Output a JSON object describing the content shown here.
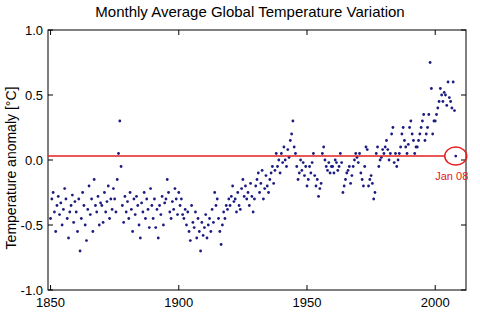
{
  "chart_data": {
    "type": "scatter",
    "title": "Monthly Average Global Temperature Variation",
    "y_label": "Temperature anomaly [°C]",
    "color": "#1c1c80",
    "marker": "dot",
    "xlim": [
      1849,
      2012
    ],
    "ylim": [
      -1,
      1
    ],
    "xticks": [
      1850,
      1900,
      1950,
      2000
    ],
    "yticks": [
      {
        "value": 1,
        "label": "1.0"
      },
      0.5,
      {
        "value": 0,
        "label": "0.0"
      },
      -0.5,
      {
        "value": -1,
        "label": "-1.0"
      }
    ],
    "grid": false,
    "annotations": [
      {
        "text": "Jan 08",
        "x": 2008,
        "y": 0.03,
        "color": "#e02020"
      }
    ],
    "x": [
      1850,
      1850.5,
      1851,
      1851.5,
      1852,
      1852.5,
      1853,
      1853.5,
      1854,
      1854.5,
      1855,
      1855.5,
      1856,
      1856.5,
      1857,
      1857.5,
      1858,
      1858.5,
      1859,
      1859.5,
      1860,
      1860.5,
      1861,
      1861.5,
      1862,
      1862.5,
      1863,
      1863.5,
      1864,
      1864.5,
      1865,
      1865.5,
      1866,
      1866.5,
      1867,
      1867.5,
      1868,
      1868.5,
      1869,
      1869.5,
      1870,
      1870.5,
      1871,
      1871.5,
      1872,
      1872.5,
      1873,
      1873.5,
      1874,
      1874.5,
      1875,
      1875.5,
      1876,
      1876.5,
      1877,
      1877.5,
      1878,
      1878.5,
      1879,
      1879.5,
      1880,
      1880.5,
      1881,
      1881.5,
      1882,
      1882.5,
      1883,
      1883.5,
      1884,
      1884.5,
      1885,
      1885.5,
      1886,
      1886.5,
      1887,
      1887.5,
      1888,
      1888.5,
      1889,
      1889.5,
      1890,
      1890.5,
      1891,
      1891.5,
      1892,
      1892.5,
      1893,
      1893.5,
      1894,
      1894.5,
      1895,
      1895.5,
      1896,
      1896.5,
      1897,
      1897.5,
      1898,
      1898.5,
      1899,
      1899.5,
      1900,
      1900.5,
      1901,
      1901.5,
      1902,
      1902.5,
      1903,
      1903.5,
      1904,
      1904.5,
      1905,
      1905.5,
      1906,
      1906.5,
      1907,
      1907.5,
      1908,
      1908.5,
      1909,
      1909.5,
      1910,
      1910.5,
      1911,
      1911.5,
      1912,
      1912.5,
      1913,
      1913.5,
      1914,
      1914.5,
      1915,
      1915.5,
      1916,
      1916.5,
      1917,
      1917.5,
      1918,
      1918.5,
      1919,
      1919.5,
      1920,
      1920.5,
      1921,
      1921.5,
      1922,
      1922.5,
      1923,
      1923.5,
      1924,
      1924.5,
      1925,
      1925.5,
      1926,
      1926.5,
      1927,
      1927.5,
      1928,
      1928.5,
      1929,
      1929.5,
      1930,
      1930.5,
      1931,
      1931.5,
      1932,
      1932.5,
      1933,
      1933.5,
      1934,
      1934.5,
      1935,
      1935.5,
      1936,
      1936.5,
      1937,
      1937.5,
      1938,
      1938.5,
      1939,
      1939.5,
      1940,
      1940.5,
      1941,
      1941.5,
      1942,
      1942.5,
      1943,
      1943.5,
      1944,
      1944.5,
      1945,
      1945.5,
      1946,
      1946.5,
      1947,
      1947.5,
      1948,
      1948.5,
      1949,
      1949.5,
      1950,
      1950.5,
      1951,
      1951.5,
      1952,
      1952.5,
      1953,
      1953.5,
      1954,
      1954.5,
      1955,
      1955.5,
      1956,
      1956.5,
      1957,
      1957.5,
      1958,
      1958.5,
      1959,
      1959.5,
      1960,
      1960.5,
      1961,
      1961.5,
      1962,
      1962.5,
      1963,
      1963.5,
      1964,
      1964.5,
      1965,
      1965.5,
      1966,
      1966.5,
      1967,
      1967.5,
      1968,
      1968.5,
      1969,
      1969.5,
      1970,
      1970.5,
      1971,
      1971.5,
      1972,
      1972.5,
      1973,
      1973.5,
      1974,
      1974.5,
      1975,
      1975.5,
      1976,
      1976.5,
      1977,
      1977.5,
      1978,
      1978.5,
      1979,
      1979.5,
      1980,
      1980.5,
      1981,
      1981.5,
      1982,
      1982.5,
      1983,
      1983.5,
      1984,
      1984.5,
      1985,
      1985.5,
      1986,
      1986.5,
      1987,
      1987.5,
      1988,
      1988.5,
      1989,
      1989.5,
      1990,
      1990.5,
      1991,
      1991.5,
      1992,
      1992.5,
      1993,
      1993.5,
      1994,
      1994.5,
      1995,
      1995.5,
      1996,
      1996.5,
      1997,
      1997.5,
      1998,
      1998.5,
      1999,
      1999.5,
      2000,
      2000.5,
      2001,
      2001.5,
      2002,
      2002.5,
      2003,
      2003.5,
      2004,
      2004.5,
      2005,
      2005.5,
      2006,
      2006.5,
      2007,
      2007.5,
      2008
    ],
    "values": [
      -0.45,
      -0.3,
      -0.25,
      -0.4,
      -0.55,
      -0.35,
      -0.28,
      -0.42,
      -0.33,
      -0.5,
      -0.38,
      -0.22,
      -0.3,
      -0.45,
      -0.6,
      -0.4,
      -0.35,
      -0.27,
      -0.48,
      -0.32,
      -0.4,
      -0.55,
      -0.3,
      -0.7,
      -0.45,
      -0.25,
      -0.35,
      -0.5,
      -0.62,
      -0.38,
      -0.2,
      -0.42,
      -0.3,
      -0.55,
      -0.15,
      -0.35,
      -0.4,
      -0.28,
      -0.5,
      -0.33,
      -0.35,
      -0.48,
      -0.25,
      -0.4,
      -0.32,
      -0.2,
      -0.45,
      -0.3,
      -0.38,
      -0.22,
      -0.3,
      -0.4,
      -0.15,
      0.05,
      0.3,
      -0.05,
      -0.35,
      -0.48,
      -0.28,
      -0.4,
      -0.32,
      -0.45,
      -0.25,
      -0.38,
      -0.55,
      -0.3,
      -0.42,
      -0.28,
      -0.35,
      -0.5,
      -0.6,
      -0.33,
      -0.4,
      -0.25,
      -0.45,
      -0.3,
      -0.38,
      -0.52,
      -0.22,
      -0.35,
      -0.45,
      -0.3,
      -0.52,
      -0.38,
      -0.6,
      -0.35,
      -0.42,
      -0.28,
      -0.5,
      -0.33,
      -0.3,
      -0.15,
      -0.25,
      -0.4,
      -0.45,
      -0.32,
      -0.38,
      -0.22,
      -0.3,
      -0.42,
      -0.25,
      -0.35,
      -0.3,
      -0.42,
      -0.45,
      -0.38,
      -0.5,
      -0.4,
      -0.55,
      -0.62,
      -0.35,
      -0.48,
      -0.52,
      -0.4,
      -0.6,
      -0.45,
      -0.55,
      -0.7,
      -0.48,
      -0.58,
      -0.52,
      -0.42,
      -0.6,
      -0.5,
      -0.45,
      -0.55,
      -0.38,
      -0.48,
      -0.25,
      -0.35,
      -0.3,
      -0.45,
      -0.55,
      -0.65,
      -0.5,
      -0.4,
      -0.45,
      -0.35,
      -0.38,
      -0.3,
      -0.35,
      -0.28,
      -0.2,
      -0.32,
      -0.3,
      -0.4,
      -0.25,
      -0.35,
      -0.38,
      -0.22,
      -0.15,
      -0.28,
      -0.2,
      -0.3,
      -0.25,
      -0.35,
      -0.18,
      -0.28,
      -0.4,
      -0.3,
      -0.2,
      -0.15,
      -0.1,
      -0.25,
      -0.18,
      -0.08,
      -0.3,
      -0.22,
      -0.12,
      -0.2,
      -0.25,
      -0.15,
      -0.1,
      -0.05,
      -0.18,
      -0.08,
      0.05,
      -0.05,
      0.0,
      -0.1,
      0.05,
      -0.02,
      0.1,
      0.0,
      -0.05,
      0.08,
      0.02,
      0.15,
      0.2,
      0.3,
      0.1,
      0.05,
      -0.05,
      -0.15,
      -0.1,
      0.0,
      -0.08,
      -0.02,
      -0.12,
      -0.05,
      -0.2,
      -0.15,
      -0.05,
      -0.1,
      -0.02,
      0.05,
      -0.12,
      -0.2,
      -0.15,
      -0.28,
      -0.22,
      -0.18,
      0.05,
      0.1,
      0.0,
      -0.05,
      -0.08,
      -0.02,
      -0.1,
      -0.05,
      -0.05,
      -0.1,
      0.0,
      -0.02,
      -0.08,
      -0.05,
      0.05,
      -0.02,
      -0.25,
      -0.2,
      -0.15,
      -0.1,
      -0.08,
      -0.05,
      -0.18,
      -0.12,
      -0.05,
      0.0,
      0.05,
      0.02,
      -0.02,
      0.05,
      -0.1,
      -0.15,
      -0.2,
      -0.05,
      0.1,
      0.08,
      -0.2,
      -0.15,
      -0.12,
      -0.18,
      -0.3,
      -0.25,
      0.05,
      0.1,
      -0.05,
      0.0,
      0.02,
      0.08,
      0.05,
      0.1,
      0.15,
      0.08,
      0.0,
      0.05,
      0.2,
      0.25,
      -0.02,
      0.05,
      -0.05,
      0.0,
      0.05,
      0.1,
      0.2,
      0.25,
      0.15,
      0.1,
      0.05,
      0.12,
      0.25,
      0.3,
      0.2,
      0.15,
      0.05,
      0.1,
      0.1,
      0.15,
      0.2,
      0.25,
      0.3,
      0.35,
      0.15,
      0.2,
      0.25,
      0.35,
      0.75,
      0.55,
      0.2,
      0.3,
      0.3,
      0.35,
      0.4,
      0.45,
      0.55,
      0.5,
      0.45,
      0.52,
      0.5,
      0.42,
      0.6,
      0.48,
      0.45,
      0.4,
      0.6,
      0.38,
      0.03
    ]
  }
}
